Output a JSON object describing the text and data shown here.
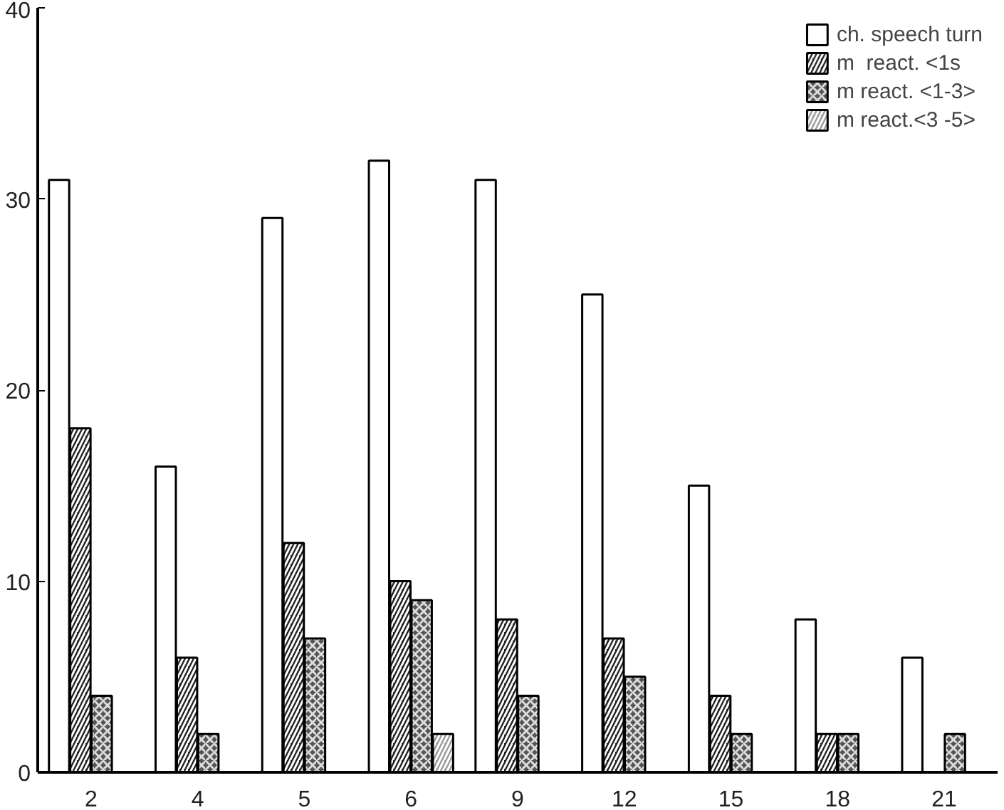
{
  "chart_data": {
    "type": "bar",
    "categories": [
      "2",
      "4",
      "5",
      "6",
      "9",
      "12",
      "15",
      "18",
      "21"
    ],
    "series": [
      {
        "name": "ch. speech turn",
        "color": "#ffffff",
        "values": [
          31,
          16,
          29,
          32,
          31,
          25,
          15,
          8,
          6
        ]
      },
      {
        "name": "m  react. <1s",
        "color": "#222222",
        "values": [
          18,
          6,
          12,
          10,
          8,
          7,
          4,
          2,
          null
        ]
      },
      {
        "name": "m react. <1-3>",
        "color": "#555555",
        "values": [
          4,
          2,
          7,
          9,
          4,
          5,
          2,
          2,
          2
        ]
      },
      {
        "name": "m react.<3 -5>",
        "color": "#999999",
        "values": [
          null,
          null,
          null,
          2,
          null,
          null,
          null,
          null,
          null
        ]
      }
    ],
    "ylim": [
      0,
      40
    ],
    "yticks": [
      0,
      10,
      20,
      30,
      40
    ],
    "grid": false,
    "legend": "top right"
  }
}
